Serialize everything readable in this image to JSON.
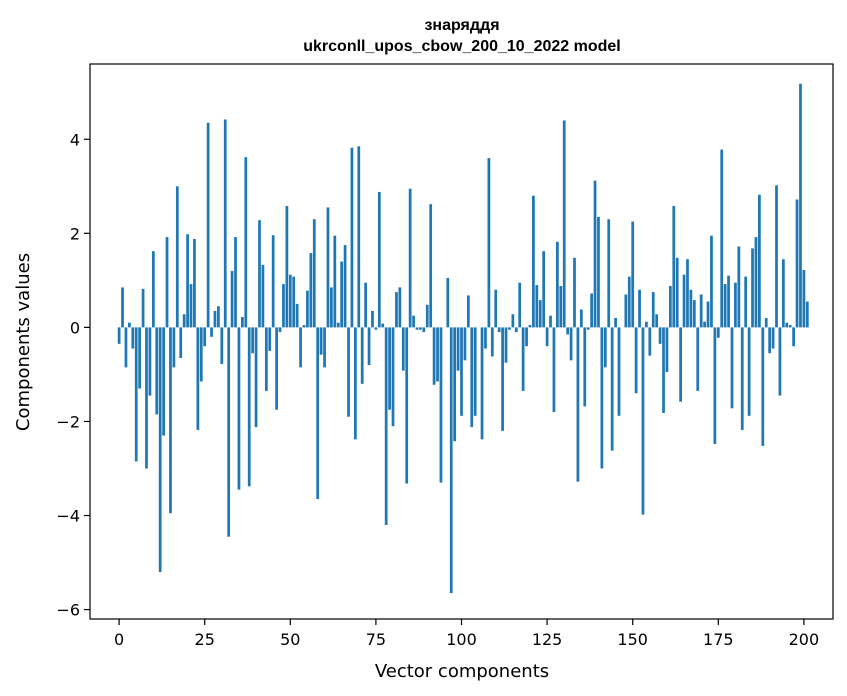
{
  "chart_data": {
    "type": "bar",
    "title": "знаряддя",
    "subtitle": "ukrconll_upos_cbow_200_10_2022 model",
    "xlabel": "Vector components",
    "ylabel": "Components values",
    "xlim": [
      -8.5,
      208.5
    ],
    "ylim": [
      -6.2,
      5.6
    ],
    "x_ticks": [
      0,
      25,
      50,
      75,
      100,
      125,
      150,
      175,
      200
    ],
    "x_tick_labels": [
      "0",
      "25",
      "50",
      "75",
      "100",
      "125",
      "150",
      "175",
      "200"
    ],
    "y_ticks": [
      -6,
      -4,
      -2,
      0,
      2,
      4
    ],
    "y_tick_labels": [
      "−6",
      "−4",
      "−2",
      "0",
      "2",
      "4"
    ],
    "bar_color": "#1f77b4",
    "grid": false,
    "values": [
      -0.35,
      0.85,
      -0.85,
      0.1,
      -0.45,
      -2.85,
      -1.3,
      0.82,
      -3.0,
      -1.45,
      1.62,
      -1.85,
      -5.2,
      -2.3,
      1.92,
      -3.95,
      -0.85,
      3.0,
      -0.65,
      0.28,
      1.98,
      0.92,
      1.88,
      -2.18,
      -1.15,
      -0.4,
      4.35,
      -0.2,
      0.35,
      0.45,
      -0.78,
      4.42,
      -4.45,
      1.2,
      1.92,
      -3.45,
      0.22,
      3.62,
      -3.38,
      -0.55,
      -2.12,
      2.28,
      1.33,
      -1.35,
      -0.5,
      1.96,
      -1.75,
      -0.1,
      0.92,
      2.58,
      1.12,
      1.08,
      0.5,
      -0.85,
      0.05,
      0.78,
      1.58,
      2.3,
      -3.65,
      -0.58,
      -0.85,
      2.55,
      0.85,
      1.95,
      0.1,
      1.4,
      1.75,
      -1.9,
      3.82,
      -2.38,
      3.85,
      -1.2,
      0.95,
      -0.8,
      0.35,
      -0.05,
      2.88,
      0.08,
      -4.2,
      -1.75,
      -2.1,
      0.75,
      0.85,
      -0.92,
      -3.32,
      2.95,
      0.25,
      -0.05,
      -0.05,
      -0.1,
      0.48,
      2.62,
      -1.22,
      -1.15,
      -3.3,
      0.0,
      1.05,
      -5.65,
      -2.42,
      -0.92,
      -1.88,
      -0.7,
      0.68,
      -2.12,
      -1.88,
      0.0,
      -2.38,
      -0.45,
      3.6,
      -0.62,
      0.8,
      -0.1,
      -2.2,
      -0.75,
      -0.05,
      0.28,
      -0.1,
      0.95,
      -1.35,
      -0.4,
      0.05,
      2.8,
      0.9,
      0.58,
      1.62,
      -0.4,
      0.25,
      -1.8,
      1.82,
      0.88,
      4.4,
      -0.15,
      -0.7,
      1.48,
      -3.28,
      0.38,
      -1.68,
      -0.05,
      0.72,
      3.12,
      2.35,
      -3.0,
      -0.85,
      2.3,
      -2.62,
      0.2,
      -1.88,
      0.0,
      0.7,
      1.08,
      2.25,
      -1.4,
      0.8,
      -3.98,
      0.12,
      -0.6,
      0.75,
      0.28,
      -0.35,
      -1.82,
      -0.95,
      0.88,
      2.58,
      1.48,
      -1.58,
      1.12,
      1.45,
      0.8,
      0.58,
      -1.35,
      0.7,
      0.12,
      0.55,
      1.95,
      -2.48,
      -0.22,
      3.78,
      0.92,
      1.1,
      -1.72,
      0.95,
      1.72,
      -2.18,
      1.08,
      -1.88,
      1.68,
      1.92,
      2.82,
      -2.52,
      0.2,
      -0.55,
      -0.45,
      3.02,
      -1.45,
      1.45,
      0.1,
      0.05,
      -0.4,
      2.72,
      5.18,
      1.22,
      0.55
    ]
  }
}
